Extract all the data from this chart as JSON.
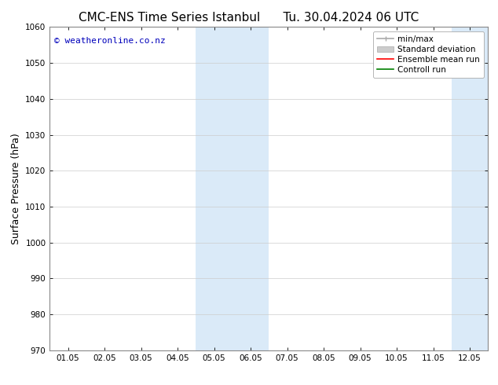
{
  "title_left": "CMC-ENS Time Series Istanbul",
  "title_right": "Tu. 30.04.2024 06 UTC",
  "ylabel": "Surface Pressure (hPa)",
  "ylim": [
    970,
    1060
  ],
  "yticks": [
    970,
    980,
    990,
    1000,
    1010,
    1020,
    1030,
    1040,
    1050,
    1060
  ],
  "xtick_labels": [
    "01.05",
    "02.05",
    "03.05",
    "04.05",
    "05.05",
    "06.05",
    "07.05",
    "08.05",
    "09.05",
    "10.05",
    "11.05",
    "12.05"
  ],
  "x_values": [
    0,
    1,
    2,
    3,
    4,
    5,
    6,
    7,
    8,
    9,
    10,
    11
  ],
  "xlim": [
    -0.5,
    11.5
  ],
  "shaded_regions": [
    {
      "x_start": 3.5,
      "x_end": 5.5,
      "color": "#daeaf8"
    },
    {
      "x_start": 10.5,
      "x_end": 11.5,
      "color": "#daeaf8"
    }
  ],
  "watermark_text": "© weatheronline.co.nz",
  "watermark_color": "#0000bb",
  "watermark_fontsize": 8,
  "bg_color": "#ffffff",
  "plot_bg_color": "#ffffff",
  "title_fontsize": 11,
  "axis_label_fontsize": 9,
  "tick_fontsize": 7.5,
  "legend_fontsize": 7.5,
  "grid_color": "#cccccc",
  "grid_linewidth": 0.5,
  "spine_color": "#888888",
  "spine_linewidth": 0.8
}
